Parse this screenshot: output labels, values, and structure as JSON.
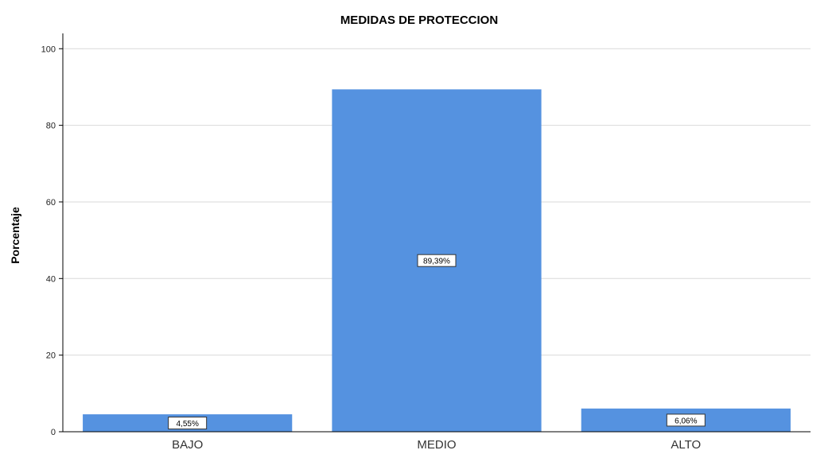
{
  "chart_data": {
    "type": "bar",
    "title": "MEDIDAS DE PROTECCION",
    "xlabel": "",
    "ylabel": "Porcentaje",
    "categories": [
      "BAJO",
      "MEDIO",
      "ALTO"
    ],
    "values": [
      4.55,
      89.39,
      6.06
    ],
    "data_labels": [
      "4,55%",
      "89,39%",
      "6,06%"
    ],
    "ylim": [
      0,
      104
    ],
    "yticks": [
      0,
      20,
      40,
      60,
      80,
      100
    ],
    "grid": true,
    "bar_color": "#5592e0",
    "grid_color": "#d9d9d9"
  }
}
